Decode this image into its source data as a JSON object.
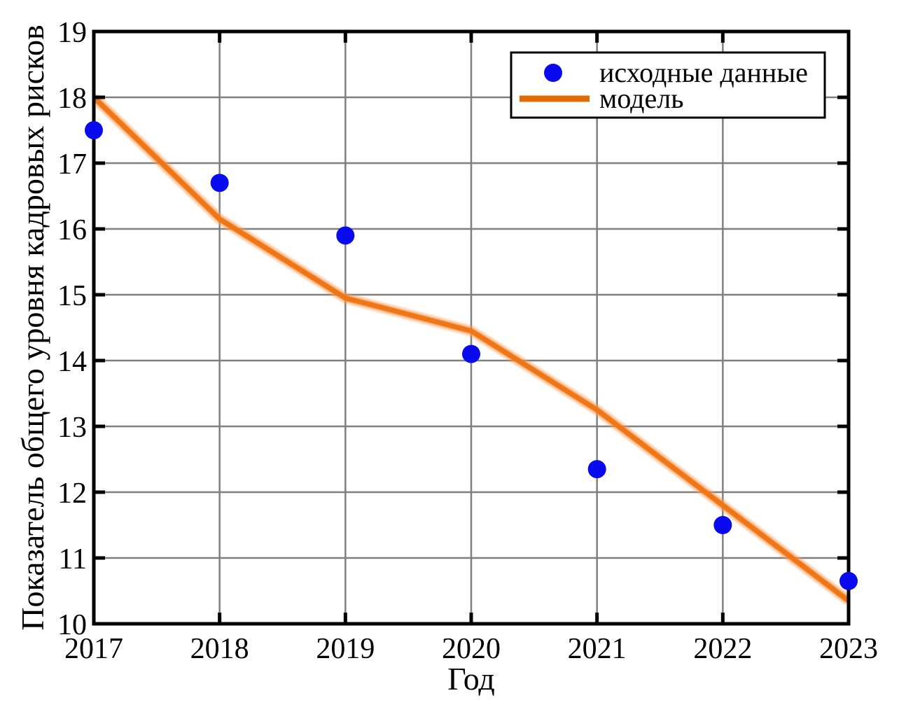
{
  "figure": {
    "background_color": "#ffffff",
    "frame_color": "#000000",
    "grid_color": "#7f7f7f"
  },
  "chart_data": {
    "type": "scatter",
    "title": "",
    "xlabel": "Год",
    "ylabel": "Показатель общего уровня кадровых рисков",
    "xlim": [
      2017,
      2023
    ],
    "ylim": [
      10,
      19
    ],
    "x_ticks": [
      2017,
      2018,
      2019,
      2020,
      2021,
      2022,
      2023
    ],
    "y_ticks": [
      10,
      11,
      12,
      13,
      14,
      15,
      16,
      17,
      18,
      19
    ],
    "grid": true,
    "legend": {
      "position": "top-right",
      "entries": [
        {
          "label": "исходные данные",
          "marker": "circle",
          "color": "#0a0aee"
        },
        {
          "label": "модель",
          "marker": "line",
          "color": "#e26b05"
        }
      ]
    },
    "series": [
      {
        "name": "исходные данные",
        "type": "scatter",
        "color": "#0a0aee",
        "marker_radius": 13,
        "x": [
          2017,
          2018,
          2019,
          2020,
          2021,
          2022,
          2023
        ],
        "y": [
          17.5,
          16.7,
          15.9,
          14.1,
          12.35,
          11.5,
          10.65
        ]
      },
      {
        "name": "модель",
        "type": "line",
        "color": "#ee7613",
        "halo_color": "#f79b52",
        "x": [
          2017,
          2018,
          2019,
          2020,
          2021,
          2022,
          2023
        ],
        "y": [
          18.0,
          16.15,
          14.95,
          14.45,
          13.25,
          11.8,
          10.35
        ]
      }
    ]
  }
}
